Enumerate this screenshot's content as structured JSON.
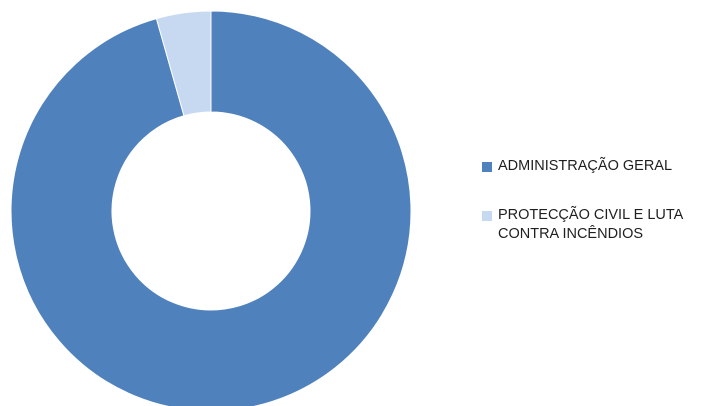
{
  "chart_data": {
    "type": "pie",
    "variant": "donut",
    "title": "",
    "slices": [
      {
        "label": "ADMINISTRAÇÃO GERAL",
        "value": 95.6,
        "color": "#4f81bd"
      },
      {
        "label": "PROTECÇÃO CIVIL E LUTA CONTRA INCÊNDIOS",
        "value": 4.4,
        "color": "#c6d9f1"
      }
    ],
    "legend_position": "right",
    "legend": {
      "items": [
        {
          "lines": [
            "ADMINISTRAÇÃO GERAL"
          ]
        },
        {
          "lines": [
            "PROTECÇÃO CIVIL E LUTA",
            "CONTRA INCÊNDIOS"
          ]
        }
      ]
    }
  }
}
